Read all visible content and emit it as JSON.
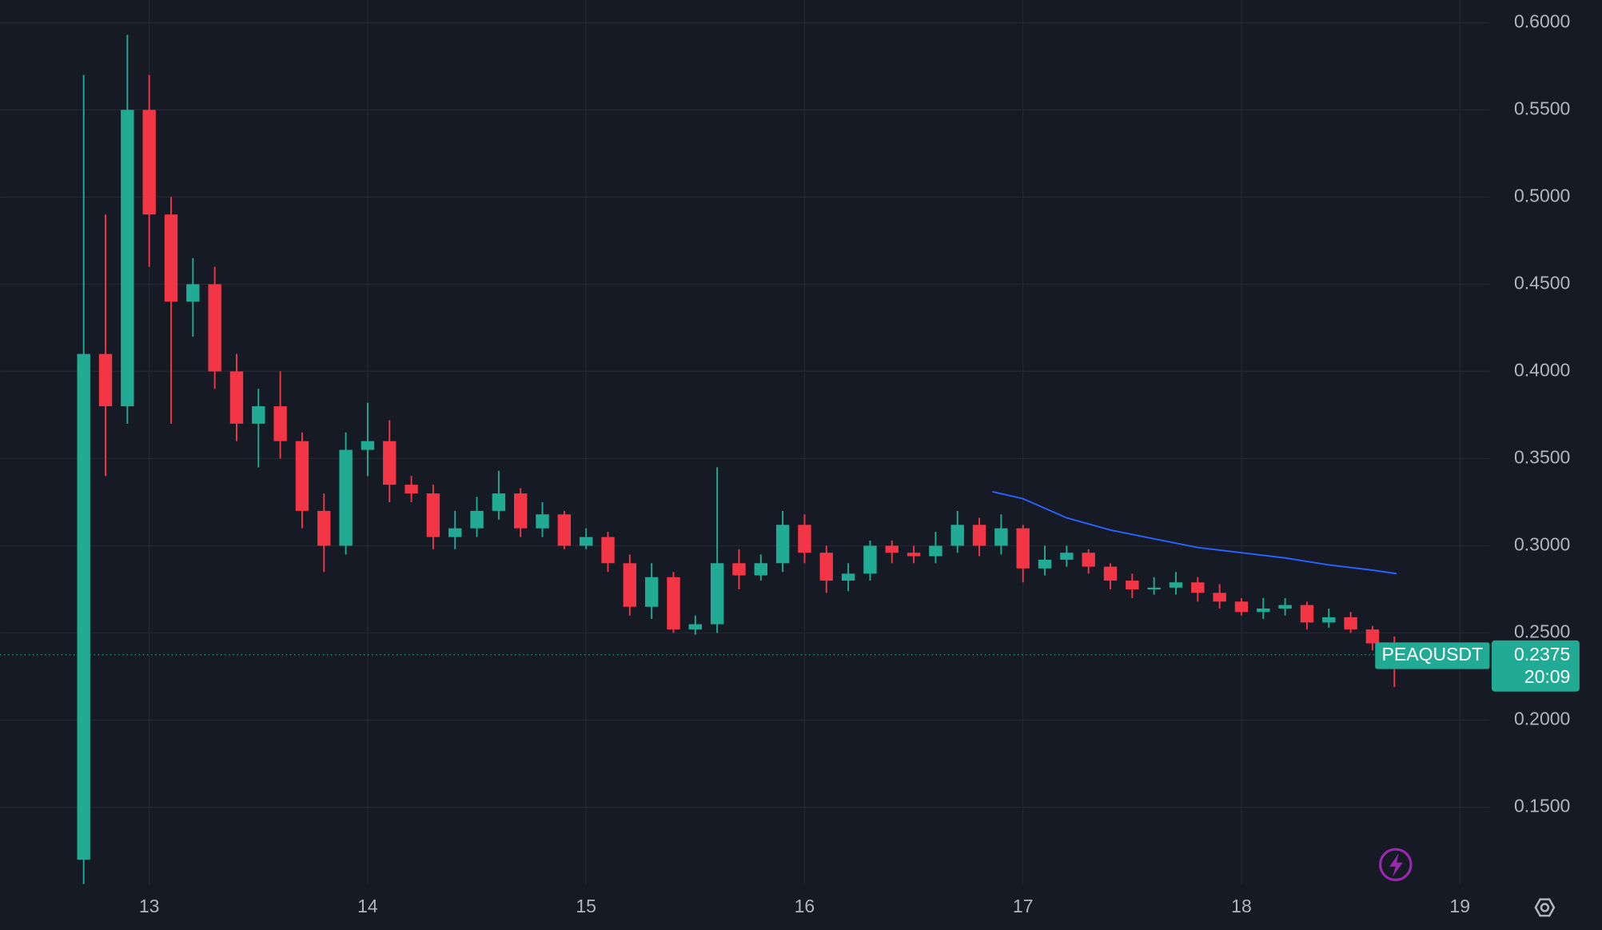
{
  "chart_data": {
    "type": "candlestick",
    "symbol": "PEAQUSDT",
    "last_price": 0.2375,
    "countdown": "20:09",
    "up_color": "#22ab94",
    "down_color": "#f23645",
    "grid": true,
    "x": [
      12.7,
      12.8,
      12.9,
      13.0,
      13.1,
      13.2,
      13.3,
      13.4,
      13.5,
      13.6,
      13.7,
      13.8,
      13.9,
      14.0,
      14.1,
      14.2,
      14.3,
      14.4,
      14.5,
      14.6,
      14.7,
      14.8,
      14.9,
      15.0,
      15.1,
      15.2,
      15.3,
      15.4,
      15.5,
      15.6,
      15.7,
      15.8,
      15.9,
      16.0,
      16.1,
      16.2,
      16.3,
      16.4,
      16.5,
      16.6,
      16.7,
      16.8,
      16.9,
      17.0,
      17.1,
      17.2,
      17.3,
      17.4,
      17.5,
      17.6,
      17.7,
      17.8,
      17.9,
      18.0,
      18.1,
      18.2,
      18.3,
      18.4,
      18.5,
      18.6,
      18.7
    ],
    "open": [
      0.12,
      0.41,
      0.38,
      0.55,
      0.49,
      0.44,
      0.45,
      0.4,
      0.37,
      0.38,
      0.36,
      0.32,
      0.3,
      0.355,
      0.36,
      0.335,
      0.33,
      0.305,
      0.31,
      0.32,
      0.33,
      0.31,
      0.318,
      0.3,
      0.305,
      0.29,
      0.265,
      0.282,
      0.252,
      0.255,
      0.29,
      0.283,
      0.29,
      0.312,
      0.296,
      0.28,
      0.284,
      0.3,
      0.296,
      0.294,
      0.3,
      0.312,
      0.3,
      0.31,
      0.287,
      0.292,
      0.296,
      0.288,
      0.28,
      0.275,
      0.276,
      0.279,
      0.273,
      0.268,
      0.262,
      0.264,
      0.266,
      0.256,
      0.259,
      0.252,
      0.244
    ],
    "high": [
      0.57,
      0.49,
      0.593,
      0.57,
      0.5,
      0.465,
      0.46,
      0.41,
      0.39,
      0.4,
      0.365,
      0.33,
      0.365,
      0.382,
      0.372,
      0.34,
      0.335,
      0.32,
      0.328,
      0.343,
      0.333,
      0.325,
      0.32,
      0.31,
      0.308,
      0.295,
      0.29,
      0.285,
      0.26,
      0.345,
      0.298,
      0.295,
      0.32,
      0.318,
      0.3,
      0.29,
      0.303,
      0.303,
      0.3,
      0.308,
      0.32,
      0.316,
      0.318,
      0.312,
      0.3,
      0.3,
      0.298,
      0.29,
      0.284,
      0.282,
      0.285,
      0.282,
      0.278,
      0.27,
      0.27,
      0.27,
      0.268,
      0.264,
      0.262,
      0.254,
      0.248
    ],
    "low": [
      0.106,
      0.34,
      0.37,
      0.46,
      0.37,
      0.42,
      0.39,
      0.36,
      0.345,
      0.35,
      0.31,
      0.285,
      0.295,
      0.34,
      0.325,
      0.325,
      0.298,
      0.298,
      0.305,
      0.315,
      0.305,
      0.305,
      0.298,
      0.298,
      0.285,
      0.26,
      0.258,
      0.25,
      0.249,
      0.25,
      0.275,
      0.28,
      0.285,
      0.29,
      0.273,
      0.274,
      0.28,
      0.29,
      0.29,
      0.29,
      0.296,
      0.294,
      0.295,
      0.279,
      0.283,
      0.288,
      0.284,
      0.275,
      0.27,
      0.272,
      0.272,
      0.268,
      0.264,
      0.26,
      0.258,
      0.26,
      0.252,
      0.253,
      0.25,
      0.24,
      0.219
    ],
    "close": [
      0.41,
      0.38,
      0.55,
      0.49,
      0.44,
      0.45,
      0.4,
      0.37,
      0.38,
      0.36,
      0.32,
      0.3,
      0.355,
      0.36,
      0.335,
      0.33,
      0.305,
      0.31,
      0.32,
      0.33,
      0.31,
      0.318,
      0.3,
      0.305,
      0.29,
      0.265,
      0.282,
      0.252,
      0.255,
      0.29,
      0.283,
      0.29,
      0.312,
      0.296,
      0.28,
      0.284,
      0.3,
      0.296,
      0.294,
      0.3,
      0.312,
      0.3,
      0.31,
      0.287,
      0.292,
      0.296,
      0.288,
      0.28,
      0.275,
      0.276,
      0.279,
      0.273,
      0.268,
      0.262,
      0.264,
      0.266,
      0.256,
      0.259,
      0.252,
      0.244,
      0.2375
    ],
    "overlay": {
      "type": "line",
      "color": "#2962ff",
      "x": [
        16.86,
        17.0,
        17.2,
        17.4,
        17.6,
        17.8,
        18.0,
        18.2,
        18.4,
        18.6,
        18.71
      ],
      "values": [
        0.331,
        0.327,
        0.316,
        0.309,
        0.304,
        0.299,
        0.296,
        0.293,
        0.289,
        0.286,
        0.284
      ]
    },
    "xlim": [
      12.317,
      19.136
    ],
    "xticks": [
      13,
      14,
      15,
      16,
      17,
      18,
      19
    ],
    "ylim": [
      0.106,
      0.613
    ],
    "yticks": [
      {
        "value": 0.15,
        "label": "0.1500"
      },
      {
        "value": 0.2,
        "label": "0.2000"
      },
      {
        "value": 0.25,
        "label": "0.2500"
      },
      {
        "value": 0.3,
        "label": "0.3000"
      },
      {
        "value": 0.35,
        "label": "0.3500"
      },
      {
        "value": 0.4,
        "label": "0.4000"
      },
      {
        "value": 0.45,
        "label": "0.4500"
      },
      {
        "value": 0.5,
        "label": "0.5000"
      },
      {
        "value": 0.55,
        "label": "0.5500"
      },
      {
        "value": 0.6,
        "label": "0.6000"
      }
    ]
  }
}
